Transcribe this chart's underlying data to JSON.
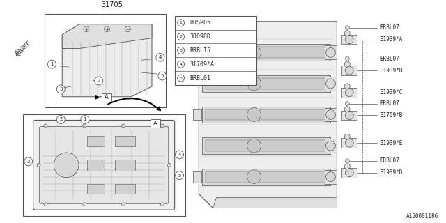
{
  "title_part": "31705",
  "legend_items": [
    {
      "num": "1",
      "code": "BRSP05"
    },
    {
      "num": "2",
      "code": "30098D"
    },
    {
      "num": "3",
      "code": "BRBL15"
    },
    {
      "num": "4",
      "code": "31709*A"
    },
    {
      "num": "5",
      "code": "BRBL01"
    }
  ],
  "right_labels": [
    {
      "bolt": "BRBL07",
      "part": "31939*A",
      "has_bolt": true
    },
    {
      "bolt": "BRBL07",
      "part": "31939*B",
      "has_bolt": true
    },
    {
      "bolt": null,
      "part": "31939*C",
      "has_bolt": false
    },
    {
      "bolt": "BRBL07",
      "part": "31709*B",
      "has_bolt": true
    },
    {
      "bolt": null,
      "part": "31939*E",
      "has_bolt": false
    },
    {
      "bolt": "BRBL07",
      "part": "31939*D",
      "has_bolt": true
    }
  ],
  "diagram_number": "A150001186",
  "bg_color": "#ffffff",
  "line_color": "#555555",
  "text_color": "#222222"
}
